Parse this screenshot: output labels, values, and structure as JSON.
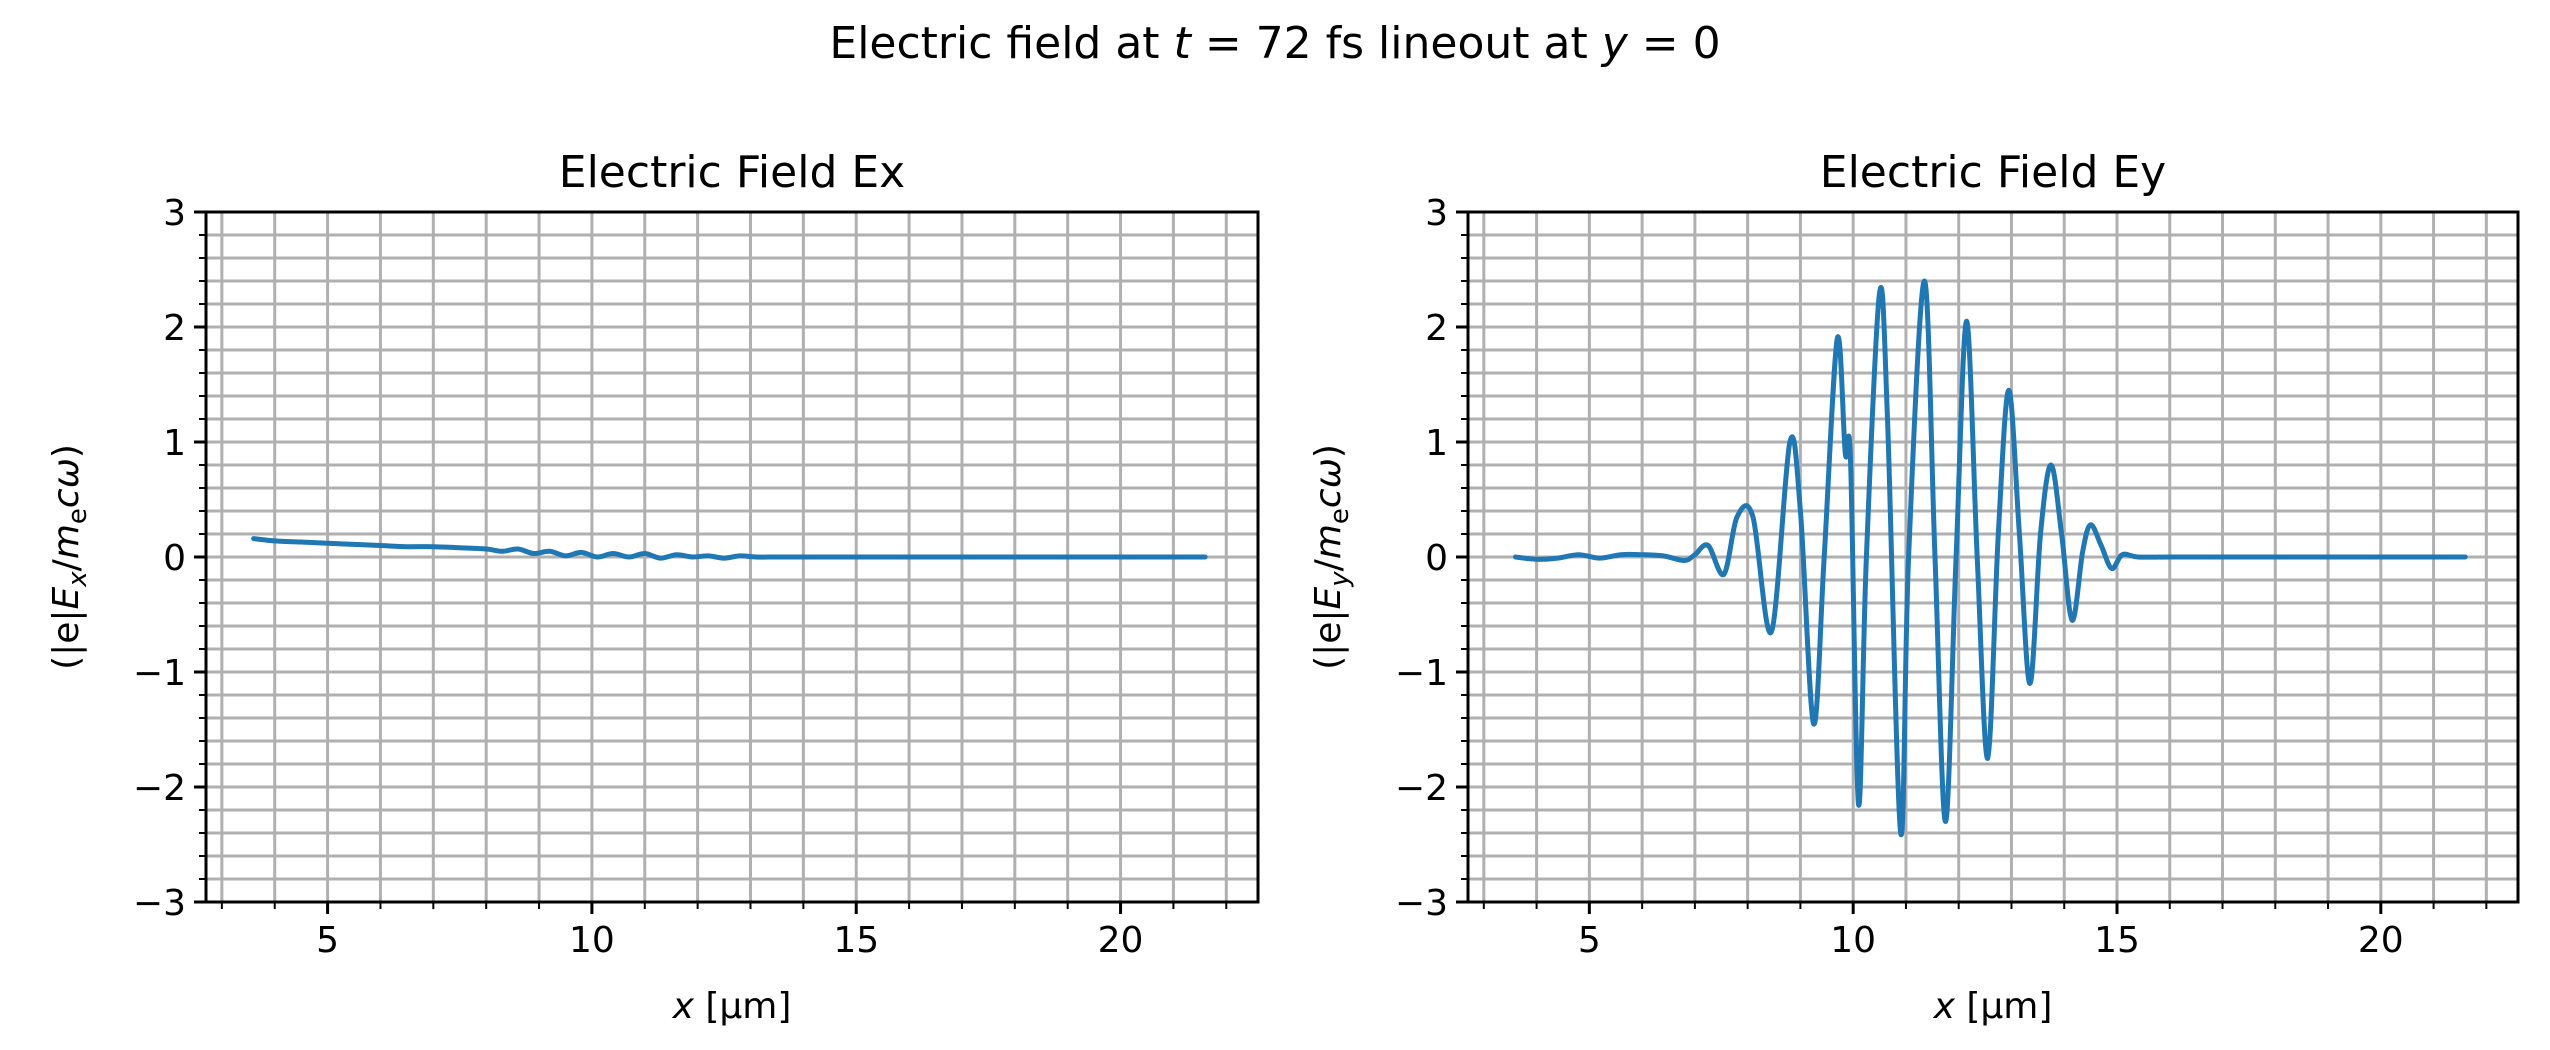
{
  "figure": {
    "suptitle": {
      "prefix": "Electric field at ",
      "t_var": "t",
      "t_eq": " = 72 fs lineout at ",
      "y_var": "y",
      "y_eq": " = 0"
    }
  },
  "chart_data": [
    {
      "type": "line",
      "title": "Electric Field Ex",
      "xlabel": "x [μm]",
      "ylabel": "(|e|E_x/m_e cω)",
      "xlim": [
        2.7,
        22.6
      ],
      "ylim": [
        -3,
        3
      ],
      "x_ticks": [
        5,
        10,
        15,
        20
      ],
      "x_tick_labels": [
        "5",
        "10",
        "15",
        "20"
      ],
      "y_ticks": [
        -3,
        -2,
        -1,
        0,
        1,
        2,
        3
      ],
      "y_tick_labels": [
        "−3",
        "−2",
        "−1",
        "0",
        "1",
        "2",
        "3"
      ],
      "grid": true,
      "legend": "none",
      "color": "#1f77b4",
      "series": [
        {
          "x": [
            3.6,
            4.0,
            4.5,
            5.0,
            5.5,
            6.0,
            6.5,
            7.0,
            7.5,
            8.0,
            8.3,
            8.6,
            8.9,
            9.2,
            9.5,
            9.8,
            10.1,
            10.4,
            10.7,
            11.0,
            11.3,
            11.6,
            11.9,
            12.2,
            12.5,
            12.8,
            13.1,
            13.5,
            14.0,
            15.0,
            16.0,
            17.0,
            18.0,
            19.0,
            20.0,
            21.0,
            21.6
          ],
          "y": [
            0.16,
            0.14,
            0.13,
            0.12,
            0.11,
            0.1,
            0.09,
            0.09,
            0.08,
            0.07,
            0.05,
            0.07,
            0.03,
            0.05,
            0.01,
            0.04,
            0.0,
            0.03,
            0.0,
            0.03,
            -0.01,
            0.02,
            0.0,
            0.01,
            -0.01,
            0.01,
            0.0,
            0.0,
            0.0,
            0.0,
            0.0,
            0.0,
            0.0,
            0.0,
            0.0,
            0.0,
            0.0
          ]
        }
      ]
    },
    {
      "type": "line",
      "title": "Electric Field Ey",
      "xlabel": "x [μm]",
      "ylabel": "(|e|E_y/m_e cω)",
      "xlim": [
        2.7,
        22.6
      ],
      "ylim": [
        -3,
        3
      ],
      "x_ticks": [
        5,
        10,
        15,
        20
      ],
      "x_tick_labels": [
        "5",
        "10",
        "15",
        "20"
      ],
      "y_ticks": [
        -3,
        -2,
        -1,
        0,
        1,
        2,
        3
      ],
      "y_tick_labels": [
        "−3",
        "−2",
        "−1",
        "0",
        "1",
        "2",
        "3"
      ],
      "grid": true,
      "legend": "none",
      "color": "#1f77b4",
      "series": [
        {
          "x": [
            3.6,
            4.0,
            4.4,
            4.8,
            5.2,
            5.6,
            6.0,
            6.4,
            6.8,
            7.0,
            7.25,
            7.55,
            7.8,
            8.1,
            8.45,
            8.8,
            9.0,
            9.25,
            9.45,
            9.7,
            9.85,
            9.95,
            10.1,
            10.25,
            10.5,
            10.65,
            10.9,
            11.05,
            11.35,
            11.55,
            11.75,
            11.95,
            12.15,
            12.35,
            12.55,
            12.75,
            12.95,
            13.15,
            13.35,
            13.55,
            13.75,
            13.95,
            14.15,
            14.35,
            14.5,
            14.7,
            14.9,
            15.1,
            15.4,
            16.0,
            17.0,
            18.0,
            19.0,
            20.0,
            21.0,
            21.6
          ],
          "y": [
            0.0,
            -0.02,
            -0.01,
            0.02,
            -0.01,
            0.02,
            0.02,
            0.01,
            -0.03,
            0.02,
            0.1,
            -0.15,
            0.35,
            0.35,
            -0.65,
            1.0,
            0.4,
            -1.45,
            0.0,
            1.9,
            0.9,
            0.85,
            -2.15,
            0.0,
            2.3,
            1.2,
            -2.4,
            0.0,
            2.4,
            0.0,
            -2.3,
            0.0,
            2.05,
            0.0,
            -1.75,
            0.2,
            1.45,
            0.2,
            -1.1,
            0.2,
            0.8,
            0.2,
            -0.55,
            0.05,
            0.28,
            0.1,
            -0.1,
            0.02,
            0.0,
            0.0,
            0.0,
            0.0,
            0.0,
            0.0,
            0.0,
            0.0
          ]
        }
      ]
    }
  ]
}
